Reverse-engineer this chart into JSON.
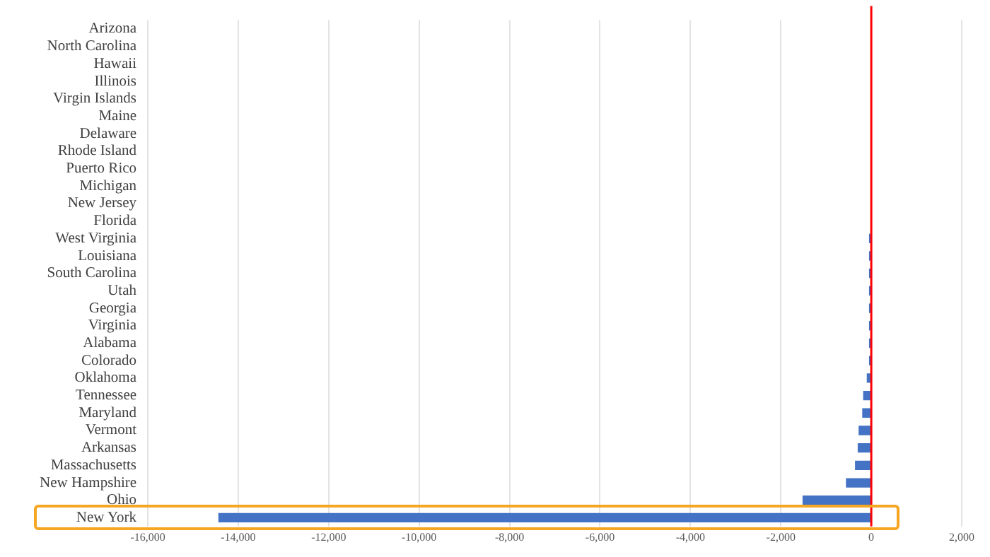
{
  "chart_data": {
    "type": "bar",
    "orientation": "horizontal",
    "categories": [
      "Arizona",
      "North Carolina",
      "Hawaii",
      "Illinois",
      "Virgin Islands",
      "Maine",
      "Delaware",
      "Rhode Island",
      "Puerto Rico",
      "Michigan",
      "New Jersey",
      "Florida",
      "West Virginia",
      "Louisiana",
      "South Carolina",
      "Utah",
      "Georgia",
      "Virginia",
      "Alabama",
      "Colorado",
      "Oklahoma",
      "Tennessee",
      "Maryland",
      "Vermont",
      "Arkansas",
      "Massachusetts",
      "New Hampshire",
      "Ohio",
      "New York"
    ],
    "values": [
      0,
      0,
      0,
      0,
      0,
      0,
      0,
      0,
      0,
      null,
      null,
      null,
      -50,
      -50,
      -50,
      -50,
      -50,
      -50,
      -50,
      -50,
      -100,
      -180,
      -200,
      -280,
      -300,
      -360,
      -560,
      -1520,
      -14440
    ],
    "color": "#4472c4",
    "xlim": [
      -16000,
      2000
    ],
    "xticks": [
      {
        "value": -16000,
        "label": "-16,000"
      },
      {
        "value": -14000,
        "label": "-14,000"
      },
      {
        "value": -12000,
        "label": "-12,000"
      },
      {
        "value": -10000,
        "label": "-10,000"
      },
      {
        "value": -8000,
        "label": "-8,000"
      },
      {
        "value": -6000,
        "label": "-6,000"
      },
      {
        "value": -4000,
        "label": "-4,000"
      },
      {
        "value": -2000,
        "label": "-2,000"
      },
      0,
      {
        "value": 2000,
        "label": "2,000"
      }
    ],
    "grid": "x",
    "ref_lines": [
      {
        "axis": "x",
        "value": 0,
        "color": "#ff0000"
      }
    ]
  }
}
